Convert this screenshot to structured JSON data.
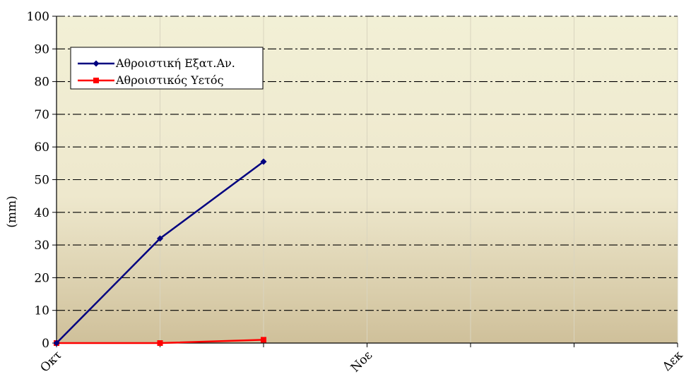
{
  "chart_data": {
    "type": "line",
    "ylabel": "(mm)",
    "ylim": [
      0,
      100
    ],
    "y_ticks": [
      0,
      10,
      20,
      30,
      40,
      50,
      60,
      70,
      80,
      90,
      100
    ],
    "x_ticks": [
      {
        "label": "Οκτ",
        "pos": 0
      },
      {
        "label": "Νοε",
        "pos": 3
      },
      {
        "label": "Δεκ",
        "pos": 6
      }
    ],
    "x_max": 6,
    "grid": true,
    "legend_position": "top-left",
    "series": [
      {
        "name": "Αθροιστική Εξατ.Αν.",
        "color": "#000080",
        "marker": "diamond",
        "points": [
          [
            0,
            0
          ],
          [
            1,
            32
          ],
          [
            2,
            55.5
          ]
        ]
      },
      {
        "name": "Αθροιστικός Υετός",
        "color": "#ff0000",
        "marker": "square",
        "points": [
          [
            0,
            0
          ],
          [
            1,
            0
          ],
          [
            2,
            1
          ]
        ]
      }
    ]
  }
}
